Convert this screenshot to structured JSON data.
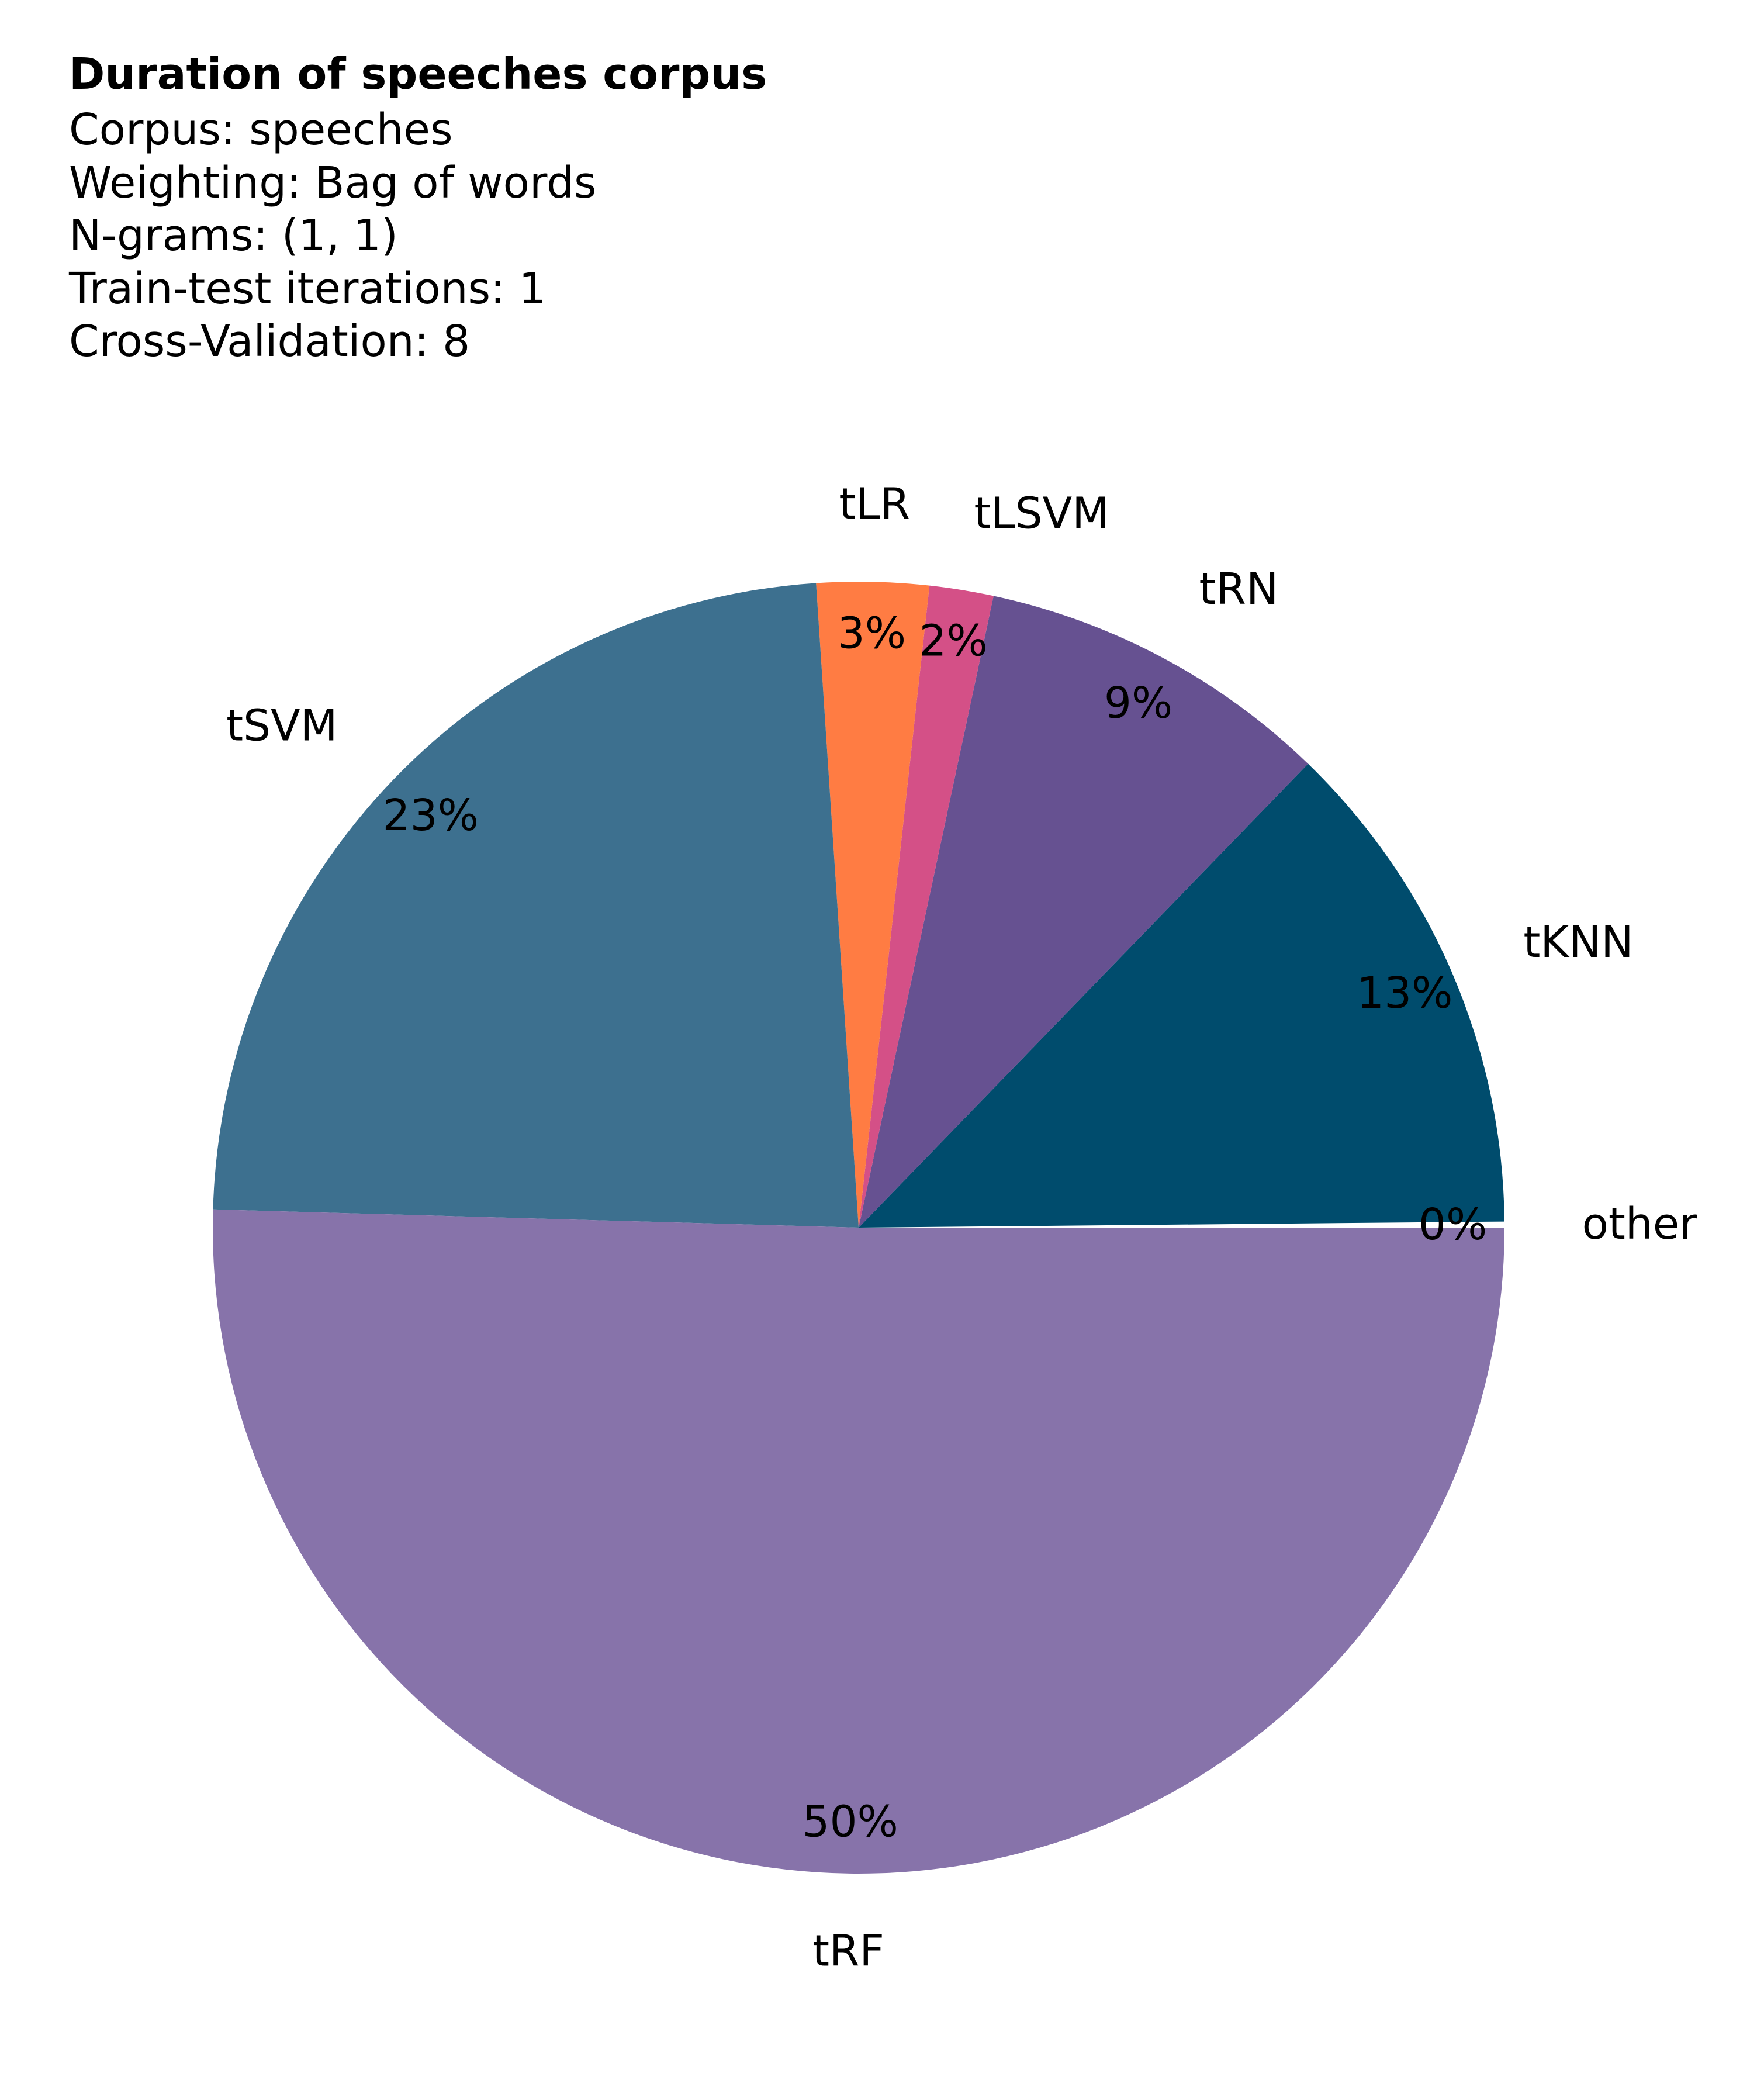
{
  "chart_data": {
    "type": "pie",
    "title": "Duration of speeches corpus",
    "subtitle_lines": [
      "Corpus: speeches",
      "Weighting: Bag of words",
      "N-grams: (1, 1)",
      "Train-test iterations: 1",
      "Cross-Validation: 8"
    ],
    "slices": [
      {
        "label": "other",
        "value": 0.15,
        "pct_label": "0%",
        "color": "#ffffff"
      },
      {
        "label": "tKNN",
        "value": 12.6,
        "pct_label": "13%",
        "color": "#004c6d"
      },
      {
        "label": "tRN",
        "value": 8.9,
        "pct_label": "9%",
        "color": "#665191"
      },
      {
        "label": "tLSVM",
        "value": 1.6,
        "pct_label": "2%",
        "color": "#d45087"
      },
      {
        "label": "tLR",
        "value": 2.8,
        "pct_label": "3%",
        "color": "#ff7c43"
      },
      {
        "label": "tSVM",
        "value": 23.5,
        "pct_label": "23%",
        "color": "#3d708f"
      },
      {
        "label": "tRF",
        "value": 50.45,
        "pct_label": "50%",
        "color": "#8773aa"
      }
    ]
  }
}
